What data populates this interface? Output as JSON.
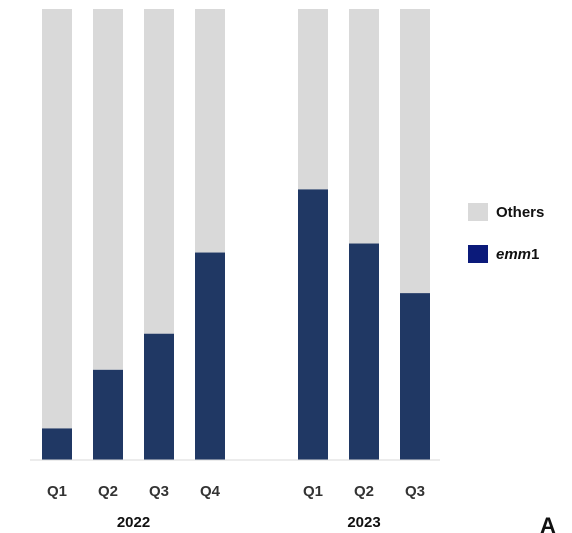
{
  "chart_data": {
    "type": "bar",
    "stacked": true,
    "percent_stacked": true,
    "groups": [
      {
        "label": "2022",
        "categories": [
          "Q1",
          "Q2",
          "Q3",
          "Q4"
        ]
      },
      {
        "label": "2023",
        "categories": [
          "Q1",
          "Q2",
          "Q3"
        ]
      }
    ],
    "series": [
      {
        "name": "emm1",
        "color": "#203864",
        "values": [
          7,
          20,
          28,
          46,
          60,
          48,
          37
        ]
      },
      {
        "name": "Others",
        "color": "#d9d9d9",
        "values": [
          93,
          80,
          72,
          54,
          40,
          52,
          63
        ]
      }
    ],
    "legend": {
      "position": "right",
      "items": [
        {
          "name": "Others",
          "text": "Others",
          "color": "#d9d9d9"
        },
        {
          "name": "emm1",
          "italic_text": "emm",
          "plain_text": "1",
          "color": "#0b1a7a"
        }
      ]
    },
    "ylim": [
      0,
      100
    ],
    "grid": false,
    "panel_label": "A"
  }
}
